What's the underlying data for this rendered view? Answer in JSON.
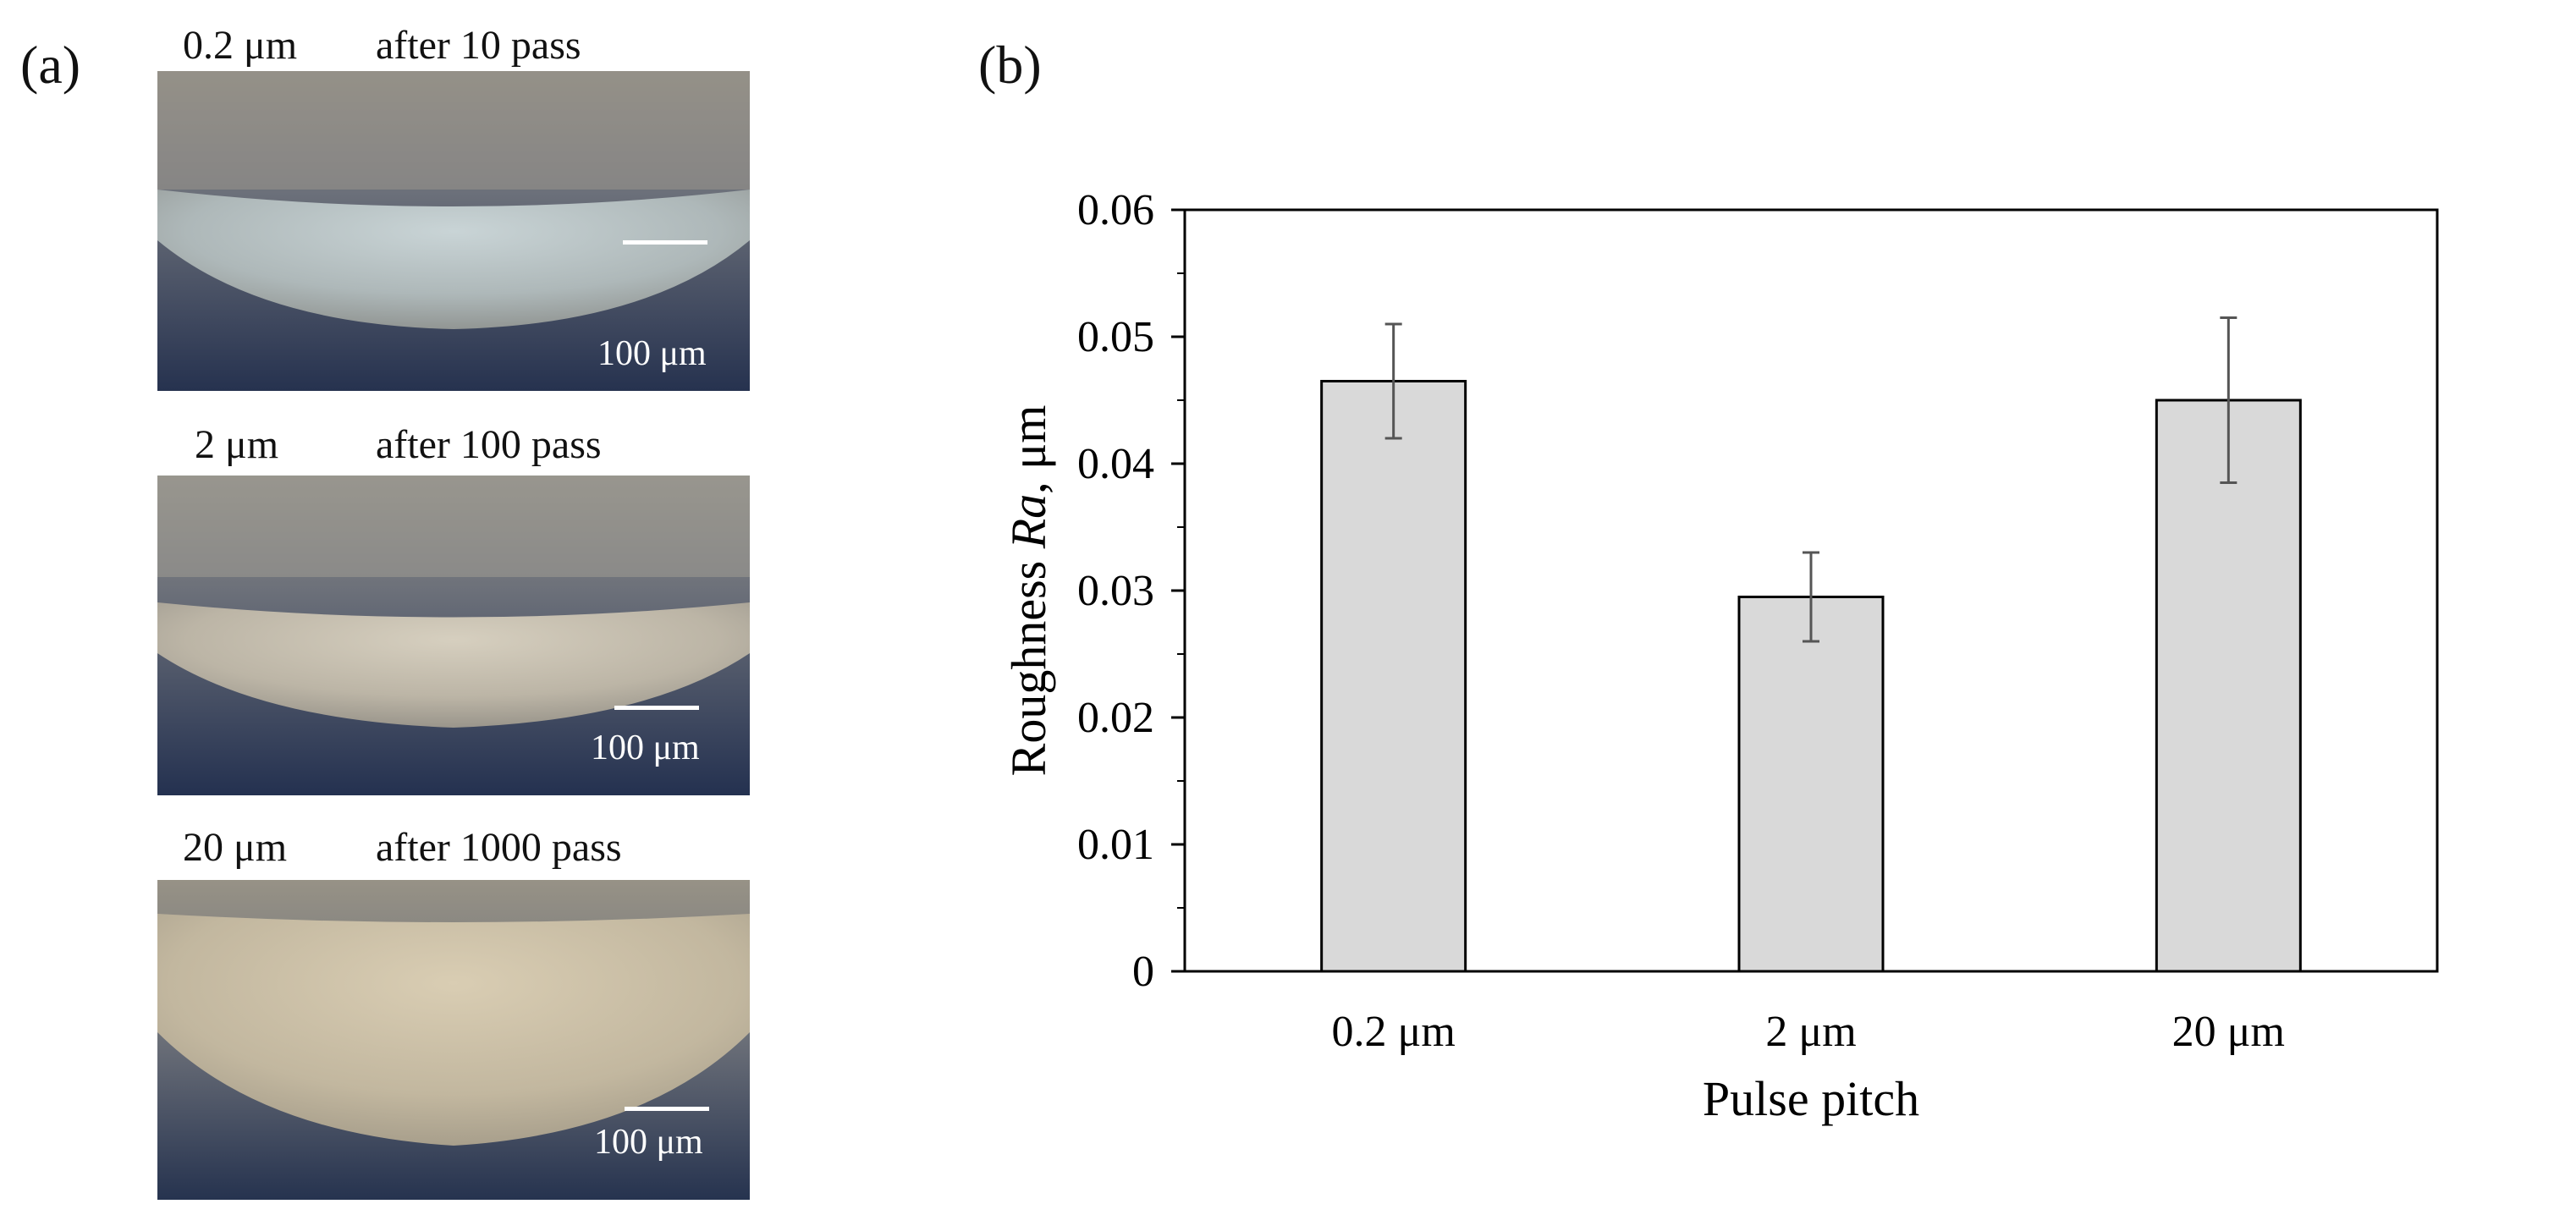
{
  "panel_a": {
    "label": "(a)",
    "micrographs": [
      {
        "pitch": "0.2 μm",
        "passes": "after 10 pass",
        "scale_label": "100 μm"
      },
      {
        "pitch": "2 μm",
        "passes": "after 100 pass",
        "scale_label": "100 μm"
      },
      {
        "pitch": "20 μm",
        "passes": "after 1000 pass",
        "scale_label": "100 μm"
      }
    ]
  },
  "panel_b": {
    "label": "(b)"
  },
  "chart_data": {
    "type": "bar",
    "categories": [
      "0.2 μm",
      "2 μm",
      "20 μm"
    ],
    "values": [
      0.0465,
      0.0295,
      0.045
    ],
    "error_low": [
      0.042,
      0.026,
      0.0385
    ],
    "error_high": [
      0.051,
      0.033,
      0.0515
    ],
    "xlabel": "Pulse pitch",
    "ylabel_prefix": "Roughness ",
    "ylabel_italic": "Ra",
    "ylabel_suffix": ", μm",
    "ylim": [
      0,
      0.06
    ],
    "yticks": [
      "0",
      "0.01",
      "0.02",
      "0.03",
      "0.04",
      "0.05",
      "0.06"
    ],
    "grid": false,
    "bar_color": "#d9d9d9"
  }
}
